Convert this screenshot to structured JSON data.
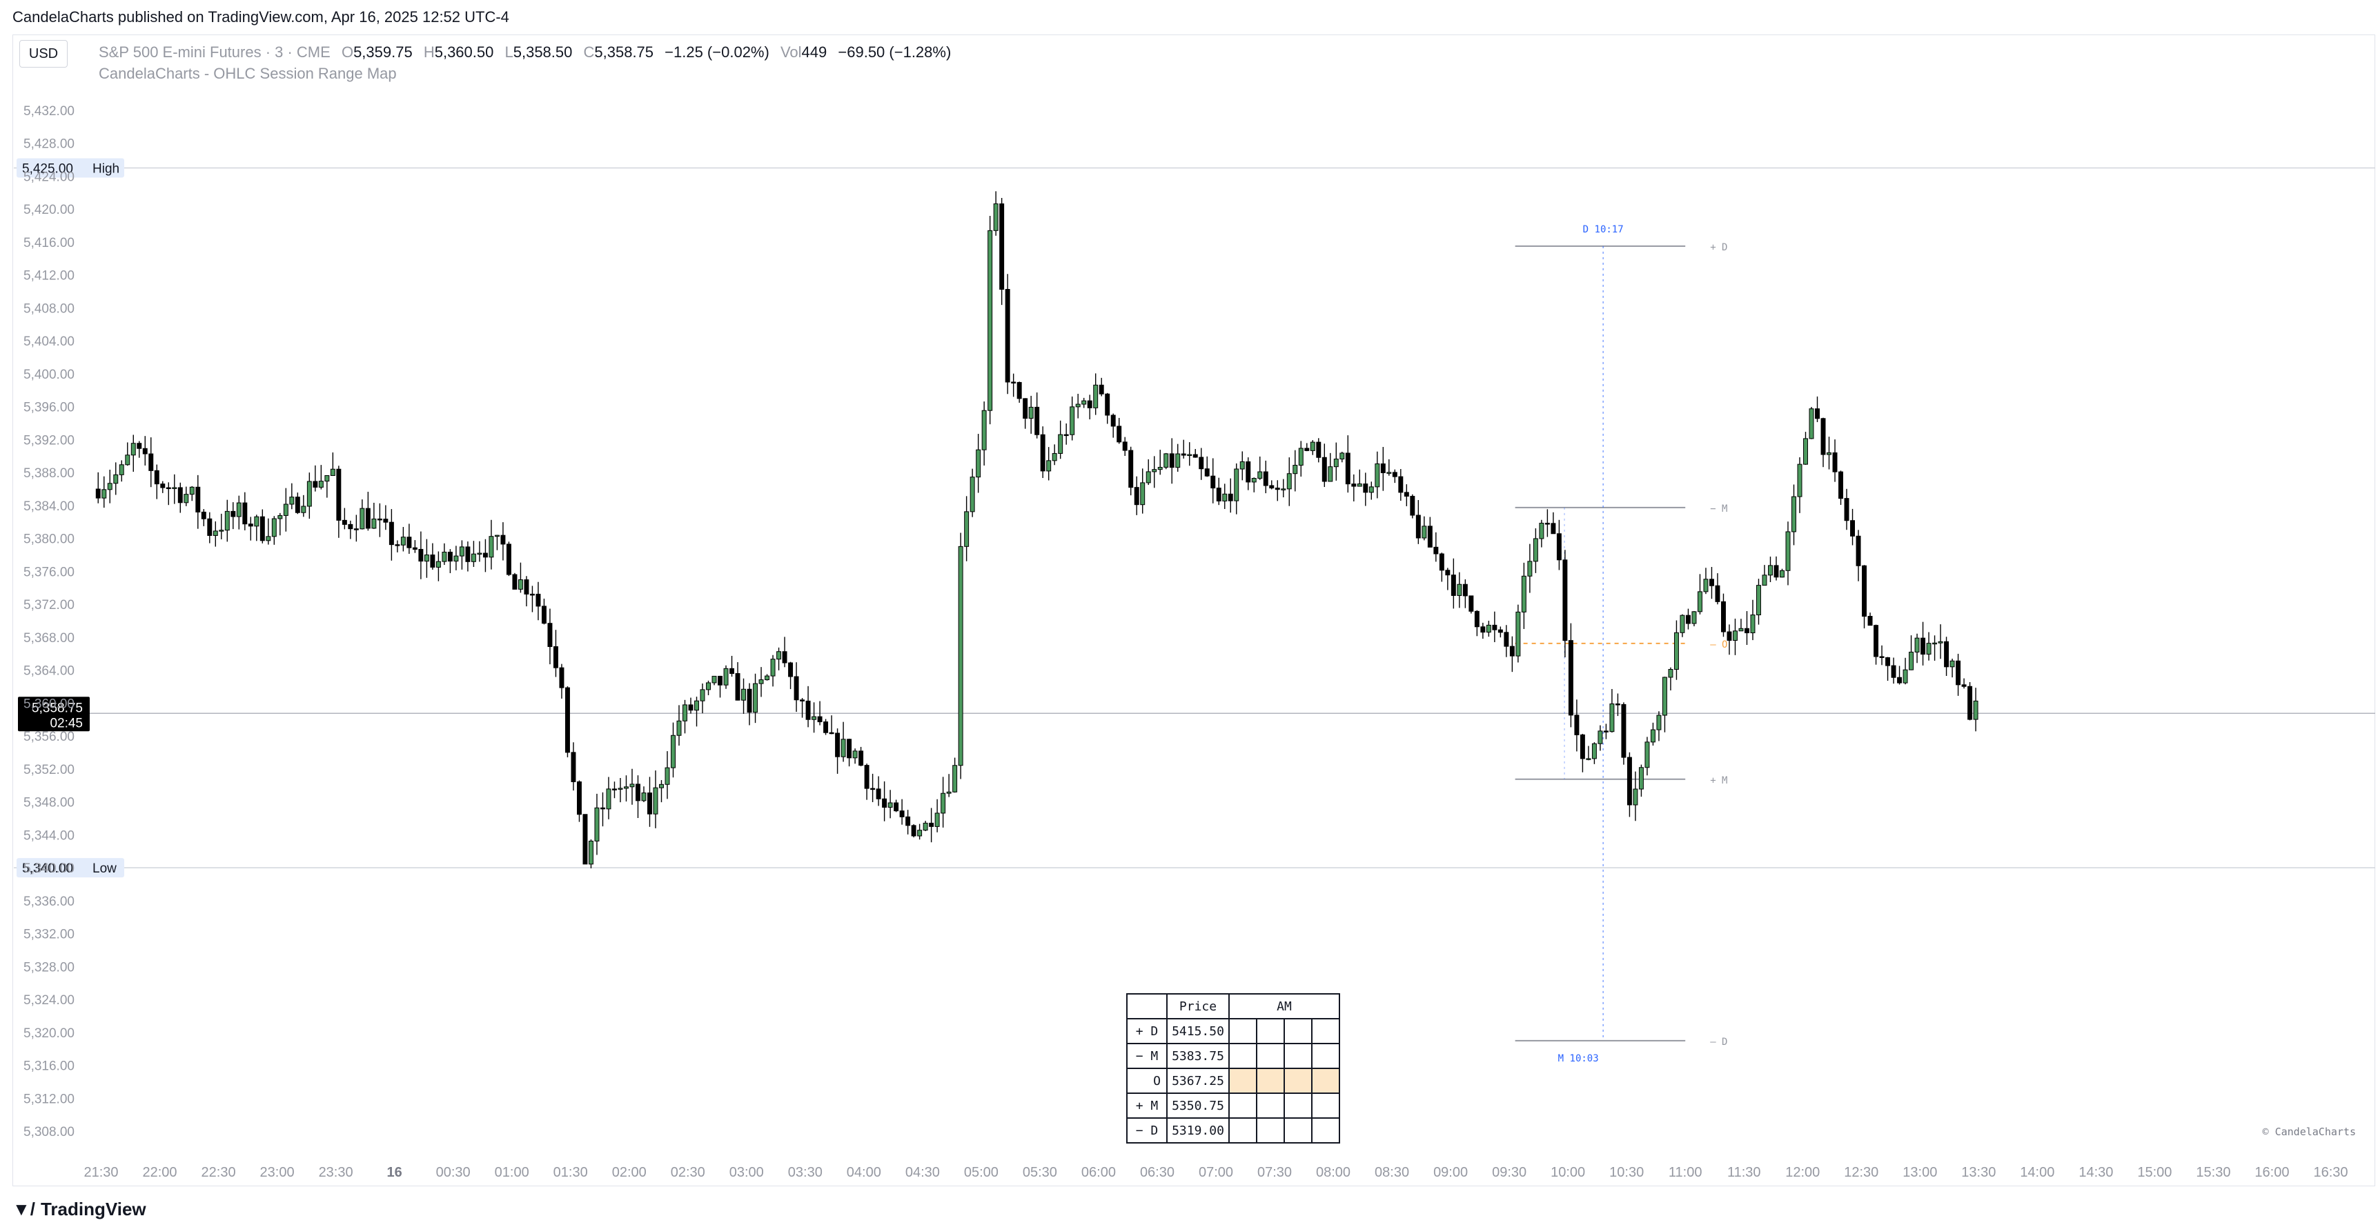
{
  "header": {
    "published": "CandelaCharts published on TradingView.com, Apr 16, 2025 12:52 UTC-4"
  },
  "toolbar": {
    "currency": "USD"
  },
  "legend": {
    "symbol": "S&P 500 E-mini Futures · 3 · CME",
    "o_label": "O",
    "o": "5,359.75",
    "h_label": "H",
    "h": "5,360.50",
    "l_label": "L",
    "l": "5,358.50",
    "c_label": "C",
    "c": "5,358.75",
    "change": "−1.25 (−0.02%)",
    "vol_label": "Vol",
    "vol": "449",
    "vol_change": "−69.50 (−1.28%)",
    "indicator": "CandelaCharts - OHLC Session Range Map"
  },
  "footer": {
    "brand": "TradingView",
    "logo": "tradingview-logo-icon"
  },
  "watermark": "© CandelaCharts",
  "colors": {
    "up": "#4c9a5e",
    "down": "#000000",
    "grid": "#e0e3eb",
    "guide": "#9598a1",
    "blue": "#2962ff",
    "orange": "#f7a545"
  },
  "chart_data": {
    "type": "candlestick",
    "ylim": [
      5306,
      5434
    ],
    "y_ticks": [
      "5,308.00",
      "5,312.00",
      "5,316.00",
      "5,320.00",
      "5,324.00",
      "5,328.00",
      "5,332.00",
      "5,336.00",
      "5,340.00",
      "5,344.00",
      "5,348.00",
      "5,352.00",
      "5,356.00",
      "5,360.00",
      "5,364.00",
      "5,368.00",
      "5,372.00",
      "5,376.00",
      "5,380.00",
      "5,384.00",
      "5,388.00",
      "5,392.00",
      "5,396.00",
      "5,400.00",
      "5,404.00",
      "5,408.00",
      "5,412.00",
      "5,416.00",
      "5,420.00",
      "5,424.00",
      "5,428.00",
      "5,432.00"
    ],
    "x_ticks": [
      "21:30",
      "22:00",
      "22:30",
      "23:00",
      "23:30",
      "16",
      "00:30",
      "01:00",
      "01:30",
      "02:00",
      "02:30",
      "03:00",
      "03:30",
      "04:00",
      "04:30",
      "05:00",
      "05:30",
      "06:00",
      "06:30",
      "07:00",
      "07:30",
      "08:00",
      "08:30",
      "09:00",
      "09:30",
      "10:00",
      "10:30",
      "11:00",
      "11:30",
      "12:00",
      "12:30",
      "13:00",
      "13:30",
      "14:00",
      "14:30",
      "15:00",
      "15:30",
      "16:00",
      "16:30"
    ],
    "x_ticks_hours": [
      21.5,
      22,
      22.5,
      23,
      23.5,
      24,
      24.5,
      25,
      25.5,
      26,
      26.5,
      27,
      27.5,
      28,
      28.5,
      29,
      29.5,
      30,
      30.5,
      31,
      31.5,
      32,
      32.5,
      33,
      33.5,
      34,
      34.5,
      35,
      35.5,
      36,
      36.5,
      37,
      37.5,
      38,
      38.5,
      39,
      39.5,
      40,
      40.5
    ],
    "x_range_hours": [
      21.45,
      40.75
    ],
    "bar_minutes": 3,
    "path": [
      [
        21.45,
        5386
      ],
      [
        21.7,
        5388
      ],
      [
        21.8,
        5391
      ],
      [
        22.0,
        5387
      ],
      [
        22.3,
        5385
      ],
      [
        22.45,
        5381
      ],
      [
        22.7,
        5383
      ],
      [
        22.9,
        5381
      ],
      [
        23.1,
        5383
      ],
      [
        23.35,
        5387
      ],
      [
        23.5,
        5388
      ],
      [
        23.55,
        5381
      ],
      [
        23.75,
        5383
      ],
      [
        24.0,
        5380
      ],
      [
        24.2,
        5378
      ],
      [
        24.45,
        5377
      ],
      [
        24.7,
        5379
      ],
      [
        24.95,
        5379
      ],
      [
        25.05,
        5375
      ],
      [
        25.2,
        5374
      ],
      [
        25.3,
        5370
      ],
      [
        25.45,
        5363
      ],
      [
        25.5,
        5355
      ],
      [
        25.6,
        5345
      ],
      [
        25.65,
        5341
      ],
      [
        25.75,
        5346
      ],
      [
        25.9,
        5350
      ],
      [
        26.05,
        5349
      ],
      [
        26.2,
        5347
      ],
      [
        26.3,
        5351
      ],
      [
        26.45,
        5358
      ],
      [
        26.6,
        5360
      ],
      [
        26.75,
        5362
      ],
      [
        26.85,
        5363
      ],
      [
        27.05,
        5360
      ],
      [
        27.2,
        5363
      ],
      [
        27.3,
        5367
      ],
      [
        27.4,
        5362
      ],
      [
        27.55,
        5358
      ],
      [
        27.75,
        5355
      ],
      [
        27.95,
        5354
      ],
      [
        28.05,
        5351
      ],
      [
        28.2,
        5347
      ],
      [
        28.4,
        5345
      ],
      [
        28.55,
        5345
      ],
      [
        28.65,
        5348
      ],
      [
        28.8,
        5352
      ],
      [
        28.85,
        5380
      ],
      [
        28.95,
        5388
      ],
      [
        29.05,
        5395
      ],
      [
        29.12,
        5425
      ],
      [
        29.25,
        5400
      ],
      [
        29.35,
        5396
      ],
      [
        29.45,
        5395
      ],
      [
        29.55,
        5388
      ],
      [
        29.7,
        5392
      ],
      [
        29.85,
        5396
      ],
      [
        30.05,
        5398
      ],
      [
        30.2,
        5392
      ],
      [
        30.35,
        5385
      ],
      [
        30.5,
        5388
      ],
      [
        30.75,
        5390
      ],
      [
        30.95,
        5387
      ],
      [
        31.05,
        5384
      ],
      [
        31.25,
        5388
      ],
      [
        31.45,
        5387
      ],
      [
        31.6,
        5386
      ],
      [
        31.8,
        5392
      ],
      [
        31.95,
        5388
      ],
      [
        32.1,
        5389
      ],
      [
        32.25,
        5386
      ],
      [
        32.45,
        5389
      ],
      [
        32.6,
        5385
      ],
      [
        32.75,
        5381
      ],
      [
        32.95,
        5377
      ],
      [
        33.15,
        5372
      ],
      [
        33.35,
        5369
      ],
      [
        33.55,
        5366
      ],
      [
        33.7,
        5378
      ],
      [
        33.85,
        5382
      ],
      [
        33.95,
        5378
      ],
      [
        34.05,
        5360
      ],
      [
        34.15,
        5352
      ],
      [
        34.3,
        5357
      ],
      [
        34.45,
        5360
      ],
      [
        34.55,
        5349
      ],
      [
        34.65,
        5352
      ],
      [
        34.8,
        5360
      ],
      [
        34.95,
        5368
      ],
      [
        35.1,
        5372
      ],
      [
        35.2,
        5375
      ],
      [
        35.35,
        5369
      ],
      [
        35.5,
        5368
      ],
      [
        35.6,
        5370
      ],
      [
        35.7,
        5377
      ],
      [
        35.85,
        5376
      ],
      [
        36.0,
        5388
      ],
      [
        36.1,
        5397
      ],
      [
        36.25,
        5389
      ],
      [
        36.45,
        5380
      ],
      [
        36.6,
        5368
      ],
      [
        36.8,
        5362
      ],
      [
        36.95,
        5366
      ],
      [
        37.1,
        5368
      ],
      [
        37.3,
        5365
      ],
      [
        37.45,
        5359
      ]
    ],
    "high_line": {
      "label": "High",
      "price": 5425.0,
      "price_text": "5,425.00"
    },
    "low_line": {
      "label": "Low",
      "price": 5340.0,
      "price_text": "5,340.00"
    },
    "last_price": {
      "price": 5358.75,
      "price_text": "5,358.75",
      "countdown": "02:45"
    },
    "session_map": {
      "x_start": 33.55,
      "x_end": 35.0,
      "x_time": 34.3,
      "levels": [
        {
          "name": "+D",
          "label": "+ D",
          "price": 5415.5,
          "color": "#9598a1",
          "dash": false
        },
        {
          "name": "-M",
          "label": "− M",
          "price": 5383.75,
          "color": "#9598a1",
          "dash": false
        },
        {
          "name": "O",
          "label": "– O",
          "price": 5367.25,
          "color": "#f7a545",
          "dash": true
        },
        {
          "name": "+M",
          "label": "+ M",
          "price": 5350.75,
          "color": "#9598a1",
          "dash": false
        },
        {
          "name": "-D",
          "label": "– D",
          "price": 5319.0,
          "color": "#9598a1",
          "dash": false
        }
      ],
      "time_top": "D 10:17",
      "time_bottom": "M 10:03"
    },
    "table": {
      "header": [
        "",
        "Price",
        "AM"
      ],
      "rows": [
        {
          "label": "+ D",
          "price": "5415.50"
        },
        {
          "label": "− M",
          "price": "5383.75"
        },
        {
          "label": "O",
          "price": "5367.25"
        },
        {
          "label": "+ M",
          "price": "5350.75"
        },
        {
          "label": "− D",
          "price": "5319.00"
        }
      ]
    }
  }
}
